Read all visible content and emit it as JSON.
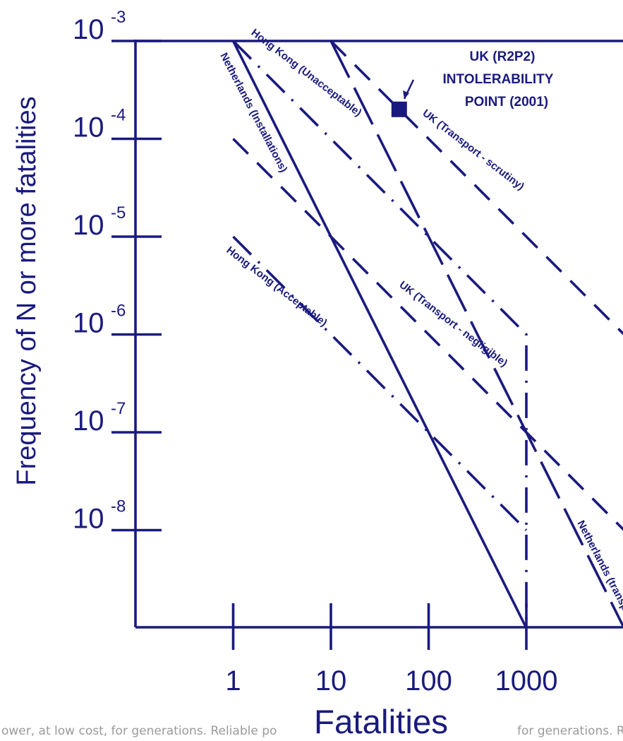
{
  "chart_data": {
    "type": "line",
    "title": "",
    "xlabel": "Fatalities",
    "ylabel": "Frequency of N or more fatalities",
    "x_scale": "log",
    "y_scale": "log",
    "xlim": [
      0.1,
      10000
    ],
    "ylim": [
      1e-09,
      0.001
    ],
    "xticks": [
      {
        "value": 1,
        "label": "1"
      },
      {
        "value": 10,
        "label": "10"
      },
      {
        "value": 100,
        "label": "100"
      },
      {
        "value": 1000,
        "label": "1000"
      }
    ],
    "yticks": [
      {
        "value": 0.001,
        "base": "10",
        "exp": "-3"
      },
      {
        "value": 0.0001,
        "base": "10",
        "exp": "-4"
      },
      {
        "value": 1e-05,
        "base": "10",
        "exp": "-5"
      },
      {
        "value": 1e-06,
        "base": "10",
        "exp": "-6"
      },
      {
        "value": 1e-07,
        "base": "10",
        "exp": "-7"
      },
      {
        "value": 1e-08,
        "base": "10",
        "exp": "-8"
      }
    ],
    "series": [
      {
        "name": "Netherlands (Installations)",
        "style": "solid",
        "x": [
          1,
          1000
        ],
        "y": [
          0.001,
          1e-09
        ]
      },
      {
        "name": "Hong Kong (Unacceptable)",
        "style": "dashdot",
        "x": [
          1,
          1000,
          1000
        ],
        "y": [
          0.001,
          1e-06,
          1e-09
        ]
      },
      {
        "name": "Hong Kong (Acceptable)",
        "style": "dashdot",
        "x": [
          1,
          1000
        ],
        "y": [
          1e-05,
          1e-08
        ]
      },
      {
        "name": "Netherlands (transport)",
        "style": "longdash",
        "x": [
          10,
          10000
        ],
        "y": [
          0.001,
          1e-09
        ]
      },
      {
        "name": "UK (Transport - scrutiny)",
        "style": "dash",
        "x": [
          10,
          10000
        ],
        "y": [
          0.001,
          1e-06
        ]
      },
      {
        "name": "UK (Transport - negligible)",
        "style": "dash",
        "x": [
          1,
          10000
        ],
        "y": [
          0.0001,
          1e-08
        ]
      }
    ],
    "points": [
      {
        "label": "UK (R2P2) INTOLERABILITY POINT (2001)",
        "x": 50,
        "y": 0.0002,
        "marker": "square"
      }
    ],
    "annotation": {
      "lines": [
        "UK (R2P2)",
        "INTOLERABILITY",
        "POINT (2001)"
      ]
    },
    "grid": false,
    "legend": "none"
  },
  "watermark": {
    "left": "ower, at low cost, for generations. Reliable po",
    "right": "for generations. Rel"
  },
  "colors": {
    "series": "#1a1a7e",
    "watermark": "#9a9a9a",
    "background": "#ffffff"
  }
}
